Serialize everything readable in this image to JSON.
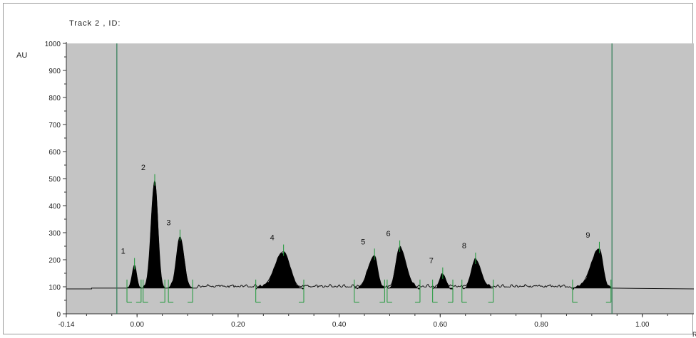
{
  "track_title": "Track 2 , ID:",
  "chart_data": {
    "type": "line",
    "title": "Track 2 , ID:",
    "ylabel": "AU",
    "xlabel": "R",
    "xlim": [
      -0.14,
      1.06
    ],
    "ylim": [
      0,
      1000
    ],
    "x_ticks": [
      -0.14,
      0.0,
      0.2,
      0.4,
      0.6,
      0.8,
      1.0
    ],
    "x_tick_labels": [
      "-0.14",
      "0.00",
      "0.20",
      "0.40",
      "0.60",
      "0.80",
      "1.00"
    ],
    "y_ticks": [
      0,
      100,
      200,
      300,
      400,
      500,
      600,
      700,
      800,
      900,
      1000
    ],
    "y_tick_labels": [
      "0",
      "100",
      "200",
      "300",
      "400",
      "500",
      "600",
      "700",
      "800",
      "900",
      "1000"
    ],
    "baseline": 95,
    "front_lines_rf": [
      -0.04,
      0.94
    ],
    "peaks": [
      {
        "label": "1",
        "start": -0.02,
        "apex": -0.005,
        "end": 0.008,
        "height": 180
      },
      {
        "label": "2",
        "start": 0.012,
        "apex": 0.035,
        "end": 0.055,
        "height": 490
      },
      {
        "label": "3",
        "start": 0.062,
        "apex": 0.085,
        "end": 0.11,
        "height": 285
      },
      {
        "label": "4",
        "start": 0.235,
        "apex": 0.29,
        "end": 0.33,
        "height": 230
      },
      {
        "label": "5",
        "start": 0.43,
        "apex": 0.47,
        "end": 0.49,
        "height": 215
      },
      {
        "label": "6",
        "start": 0.495,
        "apex": 0.52,
        "end": 0.56,
        "height": 245
      },
      {
        "label": "7",
        "start": 0.585,
        "apex": 0.605,
        "end": 0.625,
        "height": 145
      },
      {
        "label": "8",
        "start": 0.643,
        "apex": 0.67,
        "end": 0.705,
        "height": 200
      },
      {
        "label": "9",
        "start": 0.862,
        "apex": 0.915,
        "end": 0.938,
        "height": 240
      }
    ]
  },
  "colors": {
    "plot_background": "#c4c4c4",
    "peak_fill": "#000000",
    "front_line": "#2e7d55",
    "bracket": "#1f9a3a",
    "axis": "#333333"
  }
}
